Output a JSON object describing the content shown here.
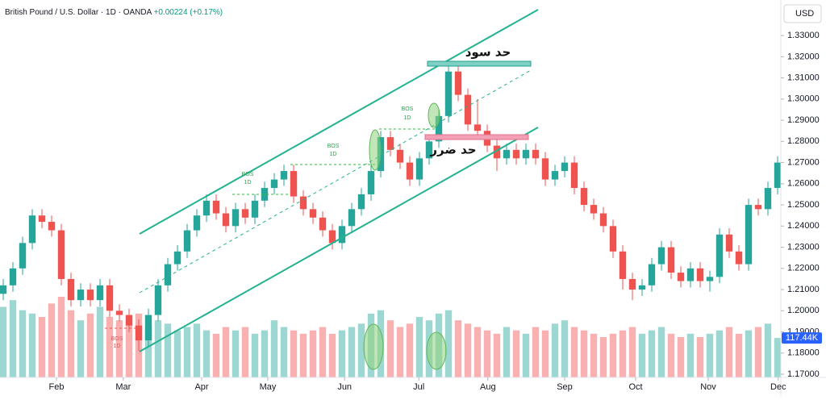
{
  "chart_data": {
    "type": "candlestick",
    "title": "British Pound / U.S. Dollar · 1D · OANDA",
    "change": "+0.00224 (+0.17%)",
    "currency": "USD",
    "up_color": "#26a69a",
    "down_color": "#ef5350",
    "x": [
      1,
      4,
      7,
      10,
      13,
      16,
      19,
      22,
      25,
      28,
      31,
      34,
      37,
      40,
      43,
      46,
      49,
      52,
      55,
      58,
      61,
      64,
      67,
      70,
      73,
      76,
      79,
      82,
      85,
      88,
      91,
      94,
      97,
      100,
      103,
      106,
      109,
      112,
      115,
      118,
      121,
      124,
      127,
      130,
      133,
      136,
      139,
      142,
      145,
      148,
      151,
      154,
      157,
      160,
      163,
      166,
      169,
      172,
      175,
      178,
      181,
      184,
      187,
      190,
      193,
      196,
      199,
      202,
      205,
      208,
      211,
      214,
      217,
      220,
      223,
      226,
      229,
      232,
      235,
      238,
      241
    ],
    "open": [
      1.208,
      1.212,
      1.22,
      1.232,
      1.245,
      1.242,
      1.238,
      1.215,
      1.205,
      1.21,
      1.205,
      1.212,
      1.2,
      1.198,
      1.193,
      1.186,
      1.198,
      1.212,
      1.222,
      1.228,
      1.238,
      1.245,
      1.252,
      1.246,
      1.24,
      1.248,
      1.244,
      1.252,
      1.258,
      1.262,
      1.266,
      1.254,
      1.248,
      1.244,
      1.238,
      1.232,
      1.24,
      1.248,
      1.255,
      1.266,
      1.282,
      1.276,
      1.27,
      1.262,
      1.272,
      1.28,
      1.292,
      1.313,
      1.302,
      1.288,
      1.285,
      1.278,
      1.272,
      1.276,
      1.272,
      1.276,
      1.272,
      1.262,
      1.266,
      1.27,
      1.258,
      1.25,
      1.246,
      1.24,
      1.228,
      1.215,
      1.21,
      1.212,
      1.222,
      1.23,
      1.218,
      1.214,
      1.22,
      1.214,
      1.216,
      1.236,
      1.228,
      1.222,
      1.25,
      1.248,
      1.258
    ],
    "high": [
      1.215,
      1.223,
      1.235,
      1.248,
      1.248,
      1.245,
      1.241,
      1.218,
      1.213,
      1.213,
      1.215,
      1.215,
      1.203,
      1.201,
      1.196,
      1.201,
      1.215,
      1.225,
      1.231,
      1.241,
      1.248,
      1.255,
      1.255,
      1.249,
      1.251,
      1.251,
      1.255,
      1.261,
      1.265,
      1.269,
      1.269,
      1.257,
      1.251,
      1.247,
      1.241,
      1.243,
      1.251,
      1.258,
      1.269,
      1.285,
      1.285,
      1.279,
      1.273,
      1.275,
      1.283,
      1.295,
      1.316,
      1.316,
      1.305,
      1.3,
      1.288,
      1.281,
      1.279,
      1.279,
      1.279,
      1.279,
      1.275,
      1.269,
      1.273,
      1.273,
      1.261,
      1.253,
      1.249,
      1.243,
      1.231,
      1.218,
      1.215,
      1.225,
      1.233,
      1.233,
      1.221,
      1.223,
      1.223,
      1.219,
      1.239,
      1.239,
      1.231,
      1.253,
      1.253,
      1.261,
      1.273
    ],
    "low": [
      1.205,
      1.209,
      1.217,
      1.229,
      1.239,
      1.235,
      1.212,
      1.202,
      1.202,
      1.202,
      1.202,
      1.197,
      1.195,
      1.19,
      1.181,
      1.183,
      1.195,
      1.209,
      1.219,
      1.225,
      1.235,
      1.242,
      1.243,
      1.237,
      1.237,
      1.241,
      1.241,
      1.249,
      1.255,
      1.259,
      1.251,
      1.245,
      1.241,
      1.235,
      1.229,
      1.229,
      1.237,
      1.245,
      1.252,
      1.263,
      1.273,
      1.267,
      1.259,
      1.259,
      1.269,
      1.277,
      1.289,
      1.299,
      1.285,
      1.282,
      1.275,
      1.266,
      1.269,
      1.269,
      1.269,
      1.269,
      1.259,
      1.259,
      1.263,
      1.255,
      1.247,
      1.243,
      1.237,
      1.225,
      1.21,
      1.205,
      1.207,
      1.209,
      1.219,
      1.215,
      1.211,
      1.211,
      1.211,
      1.209,
      1.213,
      1.225,
      1.219,
      1.219,
      1.245,
      1.245,
      1.255
    ],
    "close": [
      1.212,
      1.22,
      1.232,
      1.245,
      1.242,
      1.238,
      1.215,
      1.205,
      1.21,
      1.205,
      1.212,
      1.2,
      1.198,
      1.193,
      1.186,
      1.198,
      1.212,
      1.222,
      1.228,
      1.238,
      1.245,
      1.252,
      1.246,
      1.24,
      1.248,
      1.244,
      1.252,
      1.258,
      1.262,
      1.266,
      1.254,
      1.248,
      1.244,
      1.238,
      1.232,
      1.24,
      1.248,
      1.255,
      1.266,
      1.282,
      1.276,
      1.27,
      1.262,
      1.272,
      1.28,
      1.292,
      1.313,
      1.302,
      1.288,
      1.285,
      1.278,
      1.272,
      1.276,
      1.272,
      1.276,
      1.272,
      1.262,
      1.266,
      1.27,
      1.258,
      1.25,
      1.246,
      1.24,
      1.228,
      1.215,
      1.21,
      1.212,
      1.222,
      1.23,
      1.218,
      1.214,
      1.22,
      1.214,
      1.216,
      1.236,
      1.228,
      1.222,
      1.25,
      1.248,
      1.258,
      1.27
    ],
    "volume": [
      210,
      230,
      200,
      190,
      180,
      220,
      240,
      200,
      170,
      190,
      210,
      180,
      170,
      160,
      190,
      150,
      170,
      160,
      140,
      150,
      160,
      140,
      130,
      150,
      140,
      150,
      130,
      140,
      170,
      150,
      140,
      130,
      140,
      150,
      130,
      140,
      150,
      160,
      190,
      200,
      170,
      150,
      160,
      180,
      170,
      190,
      200,
      170,
      160,
      150,
      140,
      130,
      150,
      140,
      130,
      150,
      140,
      160,
      170,
      150,
      140,
      130,
      120,
      130,
      140,
      150,
      130,
      140,
      150,
      130,
      120,
      130,
      120,
      130,
      140,
      150,
      130,
      140,
      150,
      160,
      117.44
    ],
    "last_volume_label": "117.44K",
    "xlim": [
      0,
      242
    ],
    "xticks": [
      {
        "value": 17.5,
        "label": "Feb"
      },
      {
        "value": 38.2,
        "label": "Mar"
      },
      {
        "value": 62.5,
        "label": "Apr"
      },
      {
        "value": 83,
        "label": "May"
      },
      {
        "value": 106.8,
        "label": "Jun"
      },
      {
        "value": 129.8,
        "label": "Jul"
      },
      {
        "value": 151.2,
        "label": "Aug"
      },
      {
        "value": 175,
        "label": "Sep"
      },
      {
        "value": 197,
        "label": "Oct"
      },
      {
        "value": 219.5,
        "label": "Nov"
      },
      {
        "value": 241.2,
        "label": "Dec"
      }
    ],
    "ylim": [
      1.1685,
      1.3468
    ],
    "yticks": [
      {
        "value": 1.17,
        "label": "1.17000"
      },
      {
        "value": 1.18,
        "label": "1.18000"
      },
      {
        "value": 1.19,
        "label": "1.19000"
      },
      {
        "value": 1.2,
        "label": "1.20000"
      },
      {
        "value": 1.21,
        "label": "1.21000"
      },
      {
        "value": 1.22,
        "label": "1.22000"
      },
      {
        "value": 1.23,
        "label": "1.23000"
      },
      {
        "value": 1.24,
        "label": "1.24000"
      },
      {
        "value": 1.25,
        "label": "1.25000"
      },
      {
        "value": 1.26,
        "label": "1.26000"
      },
      {
        "value": 1.27,
        "label": "1.27000"
      },
      {
        "value": 1.28,
        "label": "1.28000"
      },
      {
        "value": 1.29,
        "label": "1.29000"
      },
      {
        "value": 1.3,
        "label": "1.30000"
      },
      {
        "value": 1.31,
        "label": "1.31000"
      },
      {
        "value": 1.32,
        "label": "1.32000"
      },
      {
        "value": 1.33,
        "label": "1.33000"
      }
    ],
    "take_profit": "حد سود",
    "stop_loss": "حد ضرر",
    "bos_labels": [
      [
        "BOS",
        "1D"
      ],
      [
        "BOS",
        "1D"
      ],
      [
        "BOS",
        "1D"
      ],
      [
        "BOS",
        "1D"
      ]
    ]
  }
}
